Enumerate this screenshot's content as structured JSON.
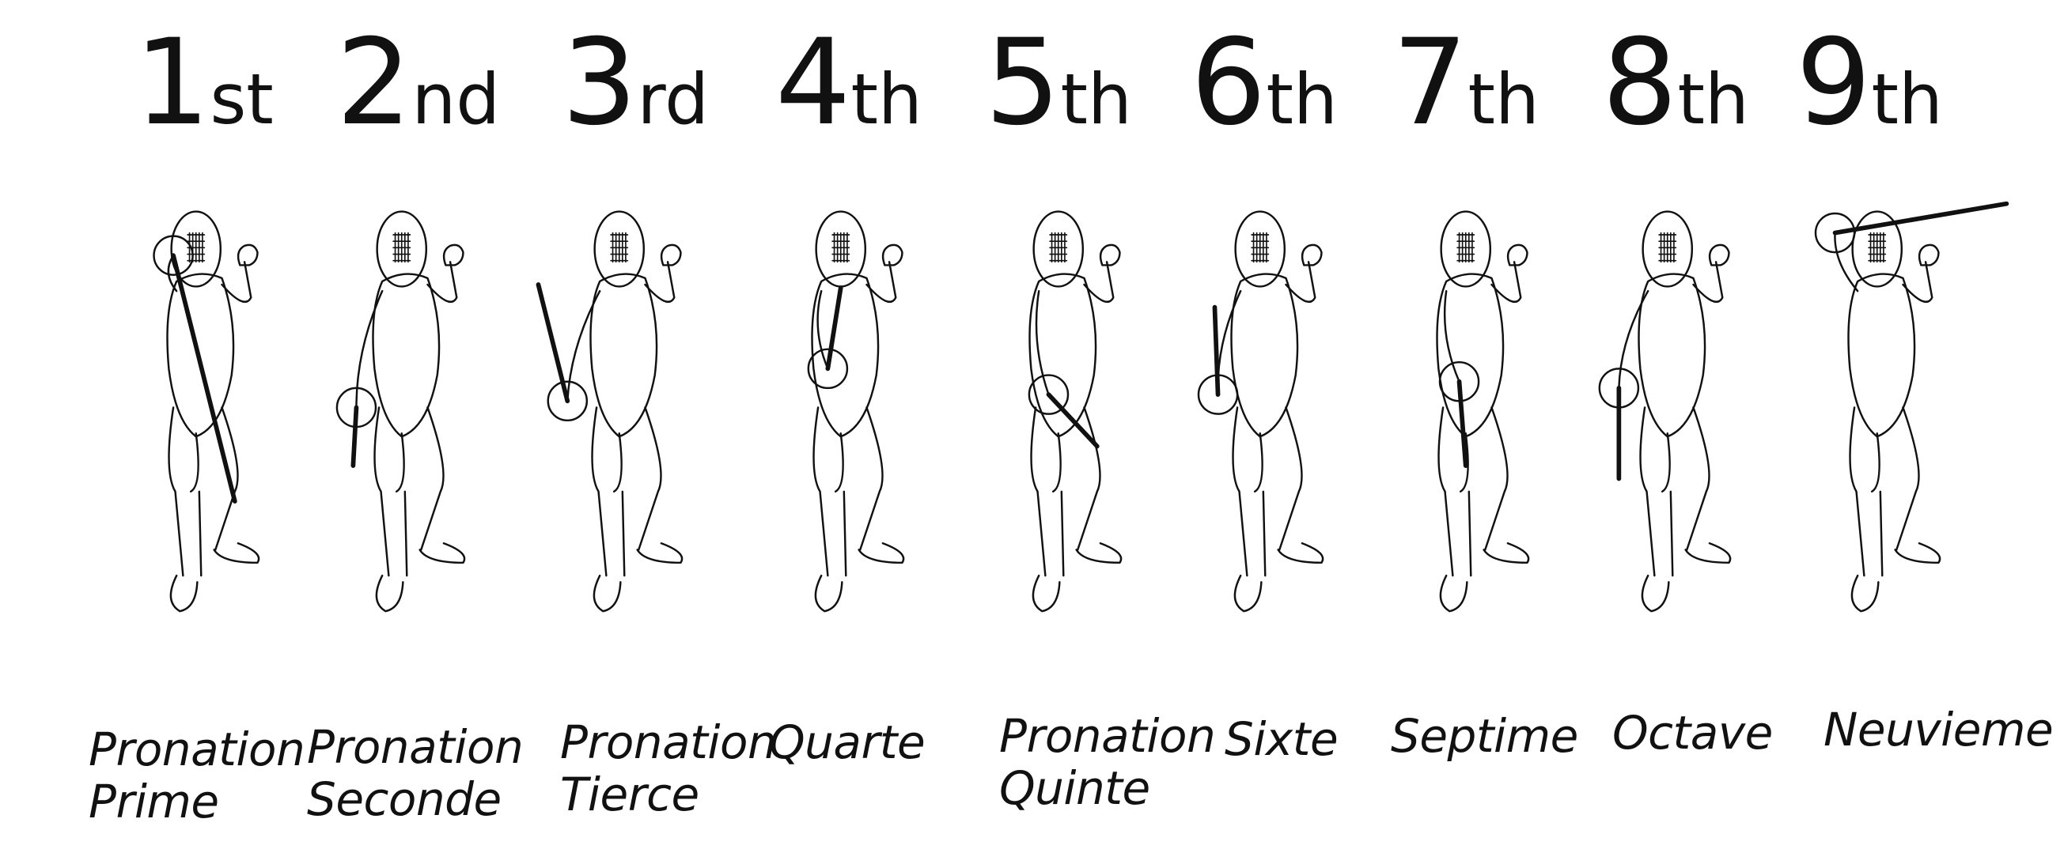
{
  "positions": [
    {
      "num": "1",
      "suffix": "st",
      "label_line1": "Pronation",
      "label_line2": "Prime"
    },
    {
      "num": "2",
      "suffix": "nd",
      "label_line1": "Pronation",
      "label_line2": "Seconde"
    },
    {
      "num": "3",
      "suffix": "rd",
      "label_line1": "Pronation",
      "label_line2": "Tierce"
    },
    {
      "num": "4",
      "suffix": "th",
      "label_line1": "",
      "label_line2": "Quarte"
    },
    {
      "num": "5",
      "suffix": "th",
      "label_line1": "Pronation",
      "label_line2": "Quinte"
    },
    {
      "num": "6",
      "suffix": "th",
      "label_line1": "",
      "label_line2": "Sixte"
    },
    {
      "num": "7",
      "suffix": "th",
      "label_line1": "",
      "label_line2": "Septime"
    },
    {
      "num": "8",
      "suffix": "th",
      "label_line1": "",
      "label_line2": "Octave"
    },
    {
      "num": "9",
      "suffix": "th",
      "label_line1": "",
      "label_line2": "Neuvieme"
    }
  ],
  "colors": {
    "ink": "#111111",
    "background": "#ffffff"
  }
}
